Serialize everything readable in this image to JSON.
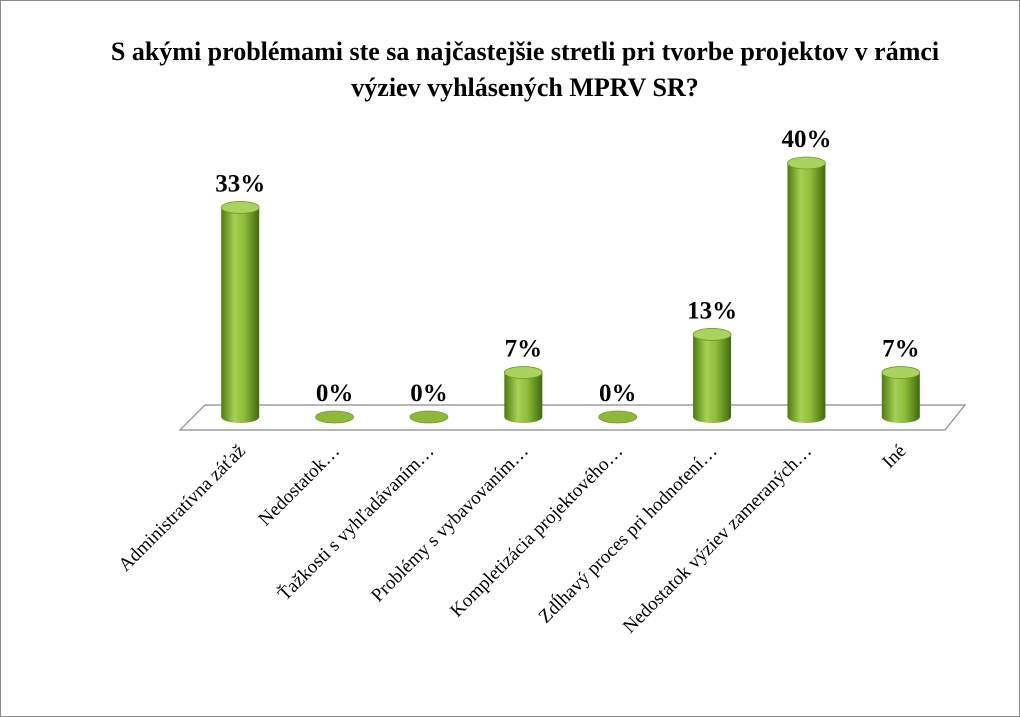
{
  "chart_data": {
    "type": "bar",
    "title": "S akými problémami ste sa najčastejšie stretli pri tvorbe projektov v rámci výziev vyhlásených MPRV SR?",
    "categories": [
      "Administratívna záťaž",
      "Nedostatok…",
      "Ťažkosti s vyhľadávaním…",
      "Problémy s vybavovaním…",
      "Kompletizácia projektového…",
      "Zdĺhavý proces pri hodnotení…",
      "Nedostatok výziev zameraných…",
      "Iné"
    ],
    "values": [
      33,
      0,
      0,
      7,
      0,
      13,
      40,
      7
    ],
    "value_labels": [
      "33%",
      "0%",
      "0%",
      "7%",
      "0%",
      "13%",
      "40%",
      "7%"
    ],
    "color": "#8fb83a"
  }
}
